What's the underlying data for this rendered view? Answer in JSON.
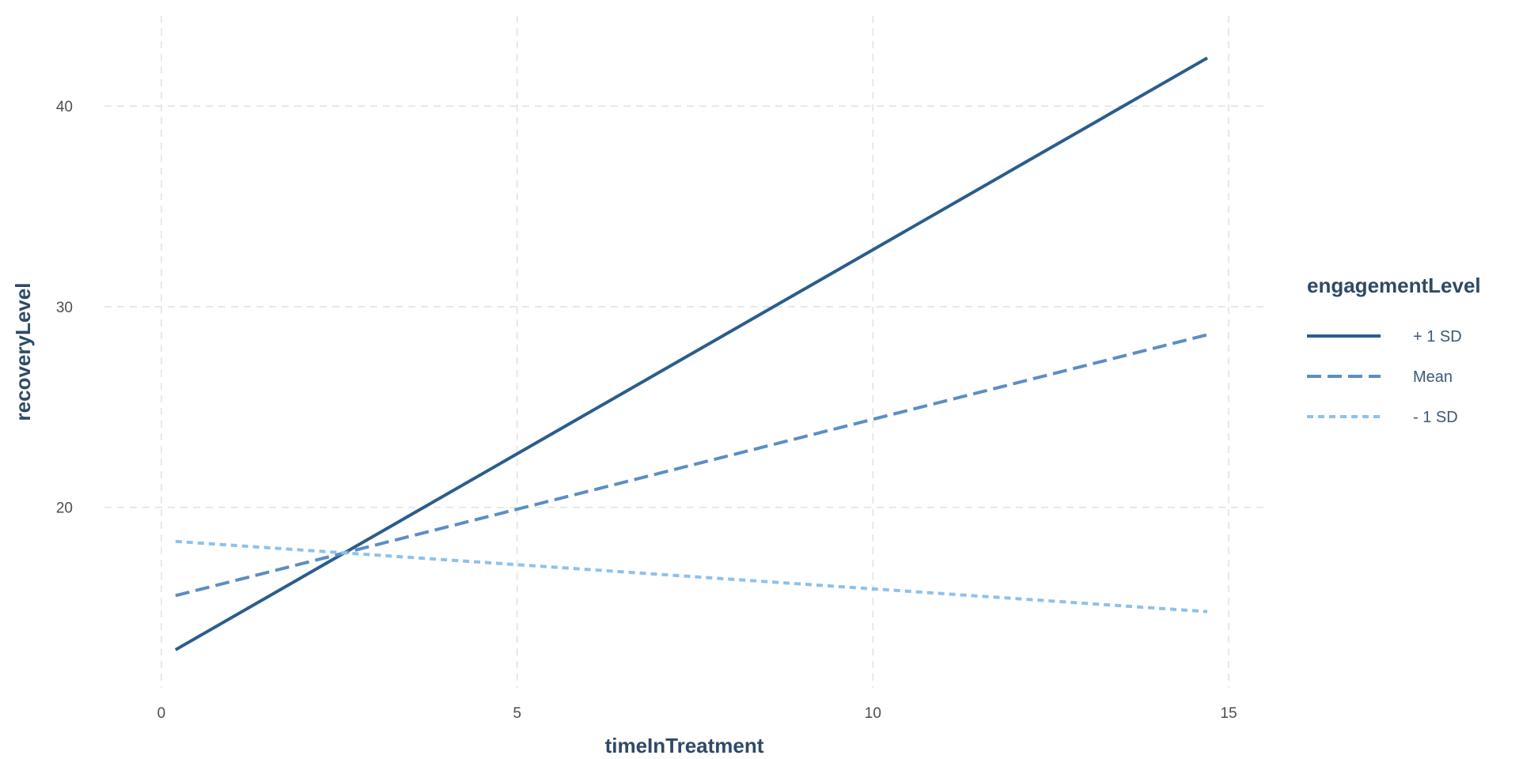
{
  "chart_data": {
    "type": "line",
    "title": "",
    "xlabel": "timeInTreatment",
    "ylabel": "recoveryLevel",
    "xlim": [
      -0.8,
      15.5
    ],
    "ylim": [
      11.0,
      44.5
    ],
    "x_ticks": [
      0,
      5,
      10,
      15
    ],
    "y_ticks": [
      20,
      30,
      40
    ],
    "grid": true,
    "legend": {
      "title": "engagementLevel",
      "placement": "right"
    },
    "series": [
      {
        "name": "+ 1 SD",
        "color": "#2b5d8c",
        "dash": "solid",
        "x": [
          0.2,
          14.7
        ],
        "y": [
          12.9,
          42.4
        ]
      },
      {
        "name": "Mean",
        "color": "#5b8ec3",
        "dash": "dashed",
        "x": [
          0.2,
          14.7
        ],
        "y": [
          15.6,
          28.6
        ]
      },
      {
        "name": "- 1 SD",
        "color": "#8ec1ea",
        "dash": "dotted",
        "x": [
          0.2,
          14.7
        ],
        "y": [
          18.3,
          14.8
        ]
      }
    ]
  }
}
